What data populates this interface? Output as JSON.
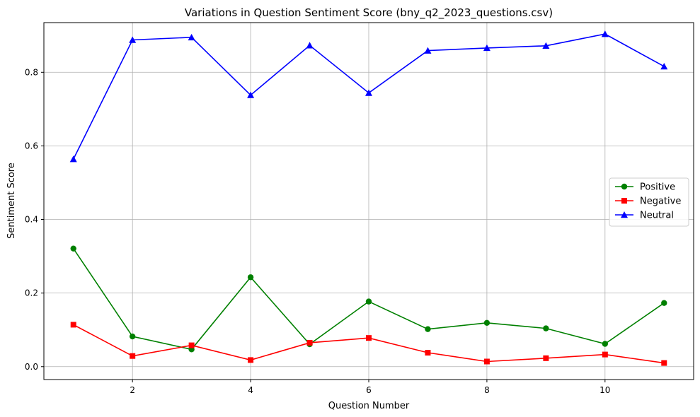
{
  "chart_data": {
    "type": "line",
    "title": "Variations in Question Sentiment Score (bny_q2_2023_questions.csv)",
    "xlabel": "Question Number",
    "ylabel": "Sentiment Score",
    "x": [
      1,
      2,
      3,
      4,
      5,
      6,
      7,
      8,
      9,
      10,
      11
    ],
    "xlim": [
      0.5,
      11.5
    ],
    "ylim": [
      -0.035,
      0.935
    ],
    "xticks": [
      2,
      4,
      6,
      8,
      10
    ],
    "yticks": [
      0.0,
      0.2,
      0.4,
      0.6,
      0.8
    ],
    "xtick_labels": [
      "2",
      "4",
      "6",
      "8",
      "10"
    ],
    "ytick_labels": [
      "0.0",
      "0.2",
      "0.4",
      "0.6",
      "0.8"
    ],
    "grid": true,
    "legend_position": "center-right",
    "series": [
      {
        "name": "Positive",
        "color": "#008000",
        "marker": "circle",
        "values": [
          0.321,
          0.082,
          0.047,
          0.243,
          0.061,
          0.177,
          0.102,
          0.119,
          0.104,
          0.062,
          0.173
        ]
      },
      {
        "name": "Negative",
        "color": "#ff0000",
        "marker": "square",
        "values": [
          0.114,
          0.029,
          0.058,
          0.018,
          0.065,
          0.078,
          0.038,
          0.014,
          0.023,
          0.033,
          0.01
        ]
      },
      {
        "name": "Neutral",
        "color": "#0000ff",
        "marker": "triangle",
        "values": [
          0.564,
          0.888,
          0.895,
          0.738,
          0.873,
          0.744,
          0.859,
          0.866,
          0.872,
          0.904,
          0.816
        ]
      }
    ]
  }
}
